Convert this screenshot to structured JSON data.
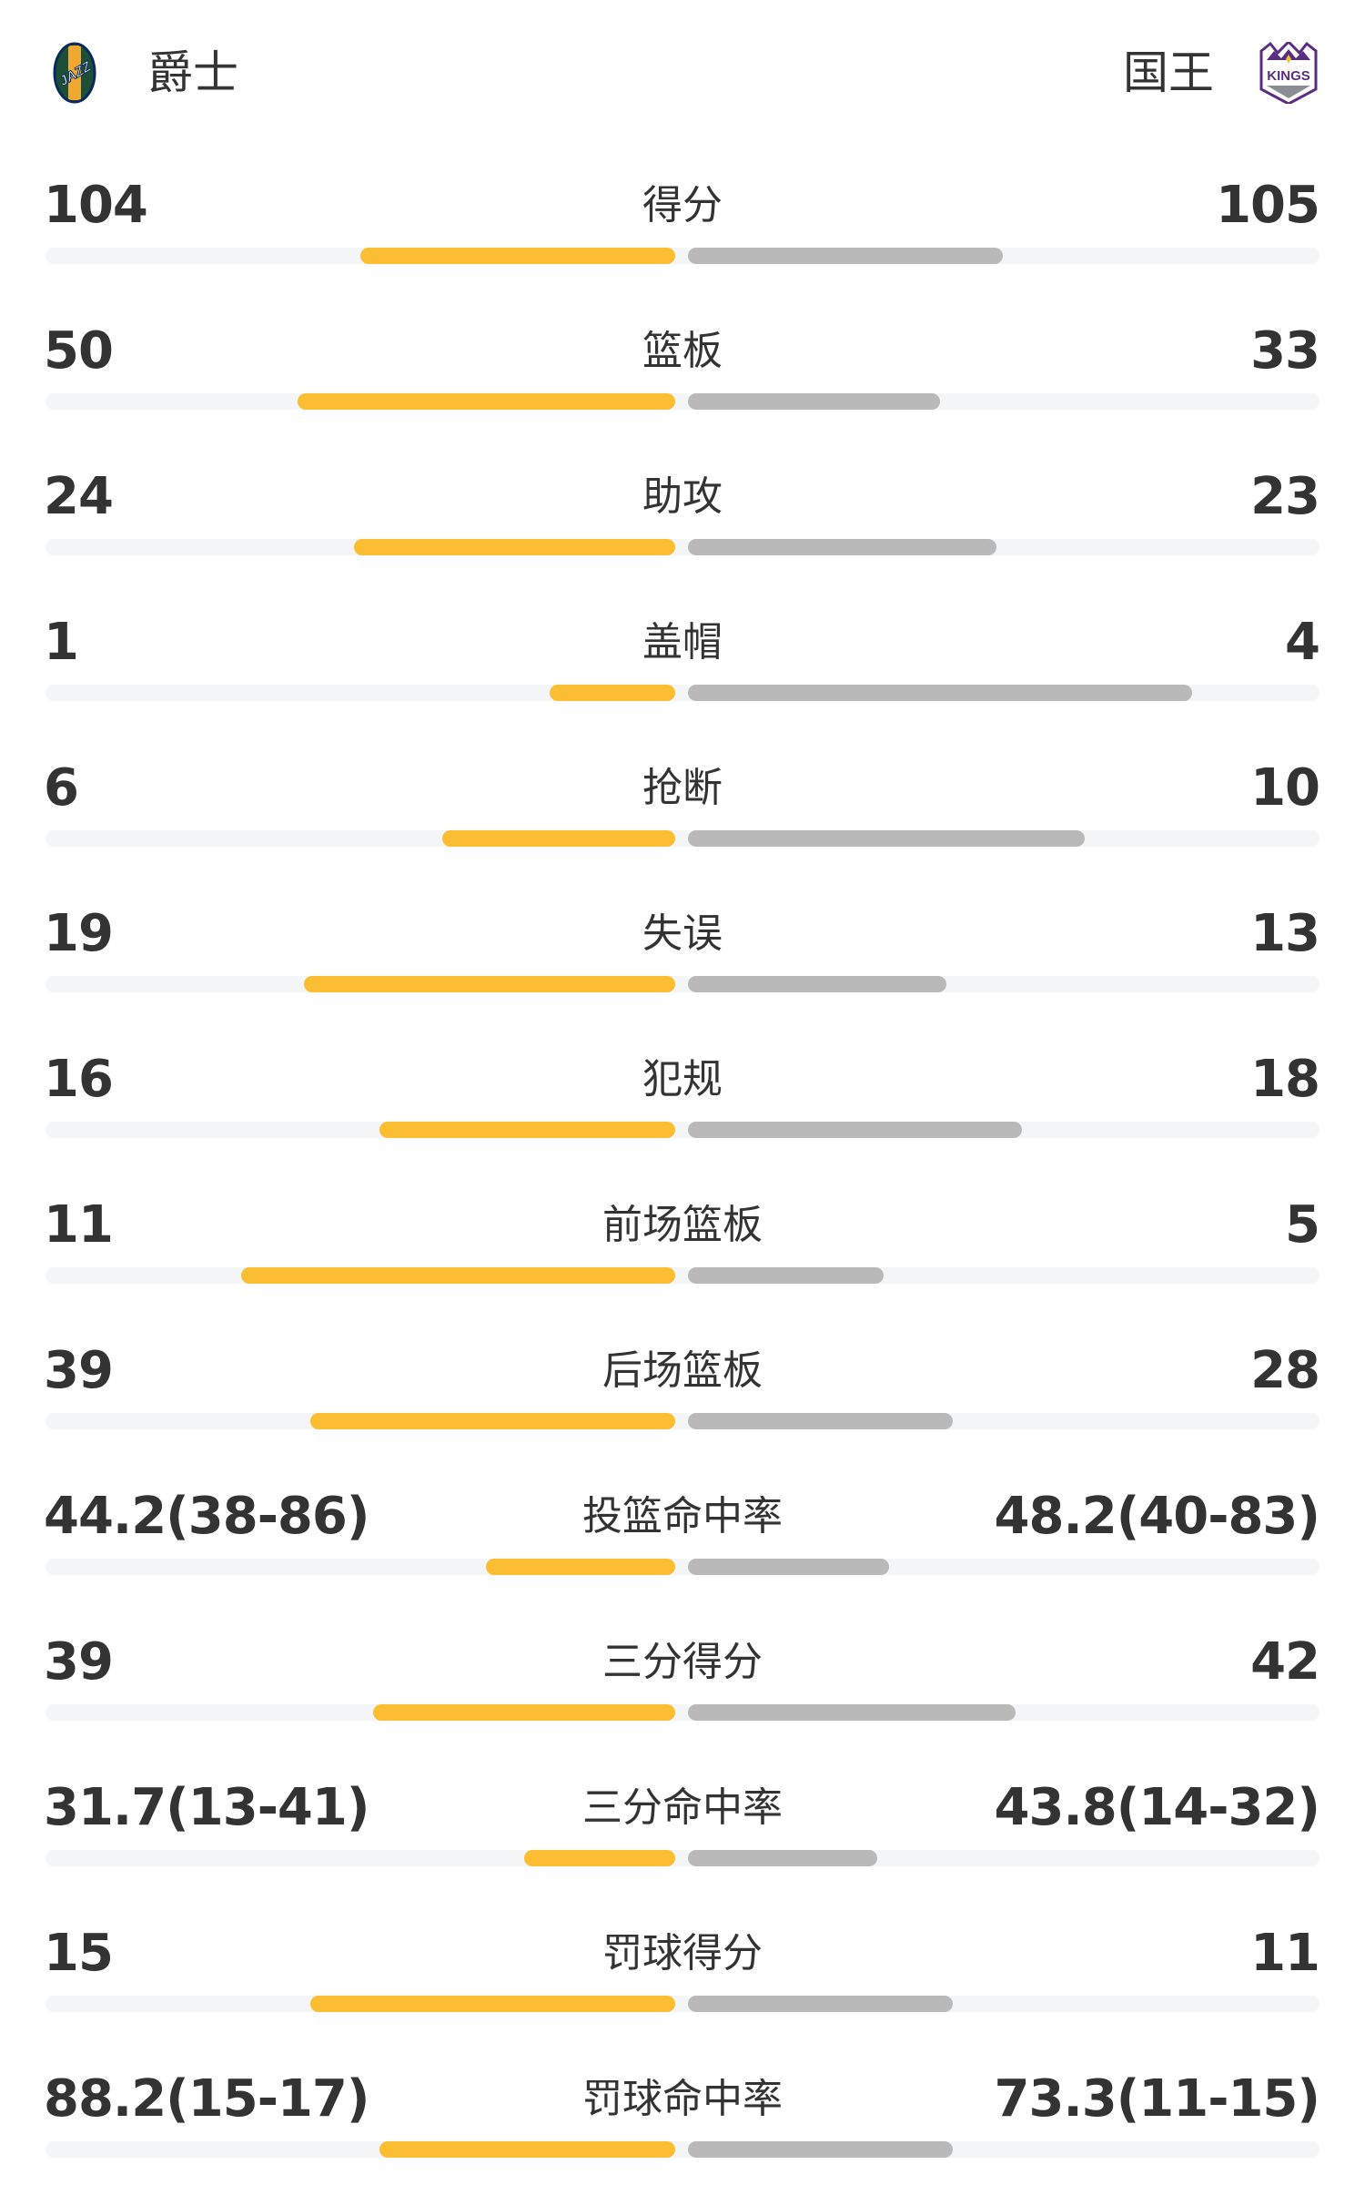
{
  "home": {
    "name": "爵士",
    "logo_icon": "jazz-logo"
  },
  "away": {
    "name": "国王",
    "logo_icon": "kings-logo"
  },
  "colors": {
    "home_bar": "#fbbd31",
    "away_bar": "#b9b9b9",
    "track": "#f4f5f7"
  },
  "stats": [
    {
      "label": "得分",
      "home": "104",
      "away": "105",
      "home_fill": 0.5,
      "away_fill": 0.5
    },
    {
      "label": "篮板",
      "home": "50",
      "away": "33",
      "home_fill": 0.6,
      "away_fill": 0.4
    },
    {
      "label": "助攻",
      "home": "24",
      "away": "23",
      "home_fill": 0.51,
      "away_fill": 0.49
    },
    {
      "label": "盖帽",
      "home": "1",
      "away": "4",
      "home_fill": 0.2,
      "away_fill": 0.8
    },
    {
      "label": "抢断",
      "home": "6",
      "away": "10",
      "home_fill": 0.37,
      "away_fill": 0.63
    },
    {
      "label": "失误",
      "home": "19",
      "away": "13",
      "home_fill": 0.59,
      "away_fill": 0.41
    },
    {
      "label": "犯规",
      "home": "16",
      "away": "18",
      "home_fill": 0.47,
      "away_fill": 0.53
    },
    {
      "label": "前场篮板",
      "home": "11",
      "away": "5",
      "home_fill": 0.69,
      "away_fill": 0.31
    },
    {
      "label": "后场篮板",
      "home": "39",
      "away": "28",
      "home_fill": 0.58,
      "away_fill": 0.42
    },
    {
      "label": "投篮命中率",
      "home": "44.2(38-86)",
      "away": "48.2(40-83)",
      "home_fill": 0.3,
      "away_fill": 0.32
    },
    {
      "label": "三分得分",
      "home": "39",
      "away": "42",
      "home_fill": 0.48,
      "away_fill": 0.52
    },
    {
      "label": "三分命中率",
      "home": "31.7(13-41)",
      "away": "43.8(14-32)",
      "home_fill": 0.24,
      "away_fill": 0.3
    },
    {
      "label": "罚球得分",
      "home": "15",
      "away": "11",
      "home_fill": 0.58,
      "away_fill": 0.42
    },
    {
      "label": "罚球命中率",
      "home": "88.2(15-17)",
      "away": "73.3(11-15)",
      "home_fill": 0.47,
      "away_fill": 0.42
    }
  ]
}
